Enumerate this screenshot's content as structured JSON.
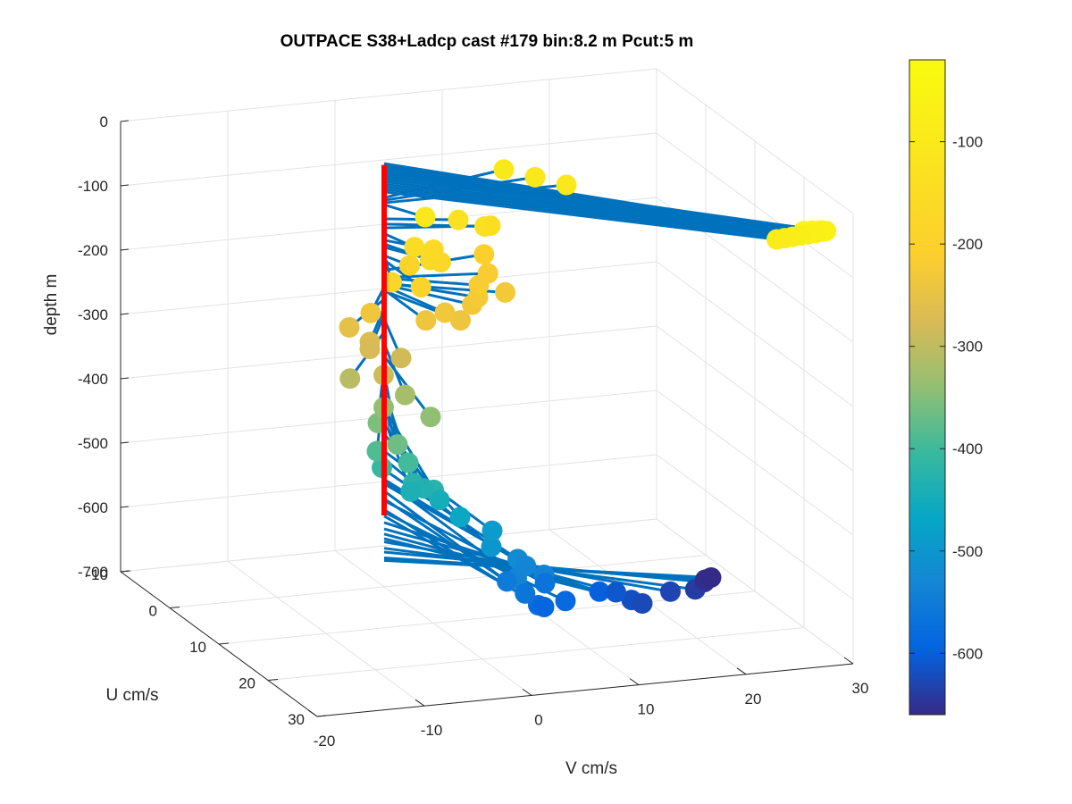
{
  "chart_data": {
    "type": "scatter",
    "title": "OUTPACE S38+Ladcp cast #179 bin:8.2 m  Pcut:5 m",
    "xlabel": "V cm/s",
    "ylabel": "U cm/s",
    "zlabel": "depth m",
    "v_ticks": [
      "-20",
      "-10",
      "0",
      "10",
      "20",
      "30"
    ],
    "u_ticks": [
      "-10",
      "0",
      "10",
      "20",
      "30"
    ],
    "depth_ticks": [
      "0",
      "-100",
      "-200",
      "-300",
      "-400",
      "-500",
      "-600",
      "-700"
    ],
    "v_range": [
      -20,
      30
    ],
    "u_range": [
      -10,
      30
    ],
    "depth_range": [
      -700,
      0
    ],
    "grid": true,
    "profile_line_color": "#ff0000",
    "vector_color": "#0072bd",
    "colorbar": {
      "colormap": "parula",
      "range": [
        -660,
        -20
      ],
      "ticks": [
        "-100",
        "-200",
        "-300",
        "-400",
        "-500",
        "-600"
      ],
      "tick_values": [
        -100,
        -200,
        -300,
        -400,
        -500,
        -600
      ]
    },
    "points_u_v_depth": [
      [
        26.5,
        27.0,
        -42
      ],
      [
        26.0,
        28.0,
        -46
      ],
      [
        25.5,
        29.0,
        -50
      ],
      [
        25.0,
        29.5,
        -54
      ],
      [
        24.5,
        30.0,
        -58
      ],
      [
        24.0,
        30.0,
        -62
      ],
      [
        23.5,
        29.5,
        -66
      ],
      [
        23.0,
        29.0,
        -70
      ],
      [
        22.5,
        28.5,
        -74
      ],
      [
        22.0,
        28.0,
        -78
      ],
      [
        21.5,
        27.5,
        -82
      ],
      [
        21.0,
        27.0,
        -86
      ],
      [
        -4.0,
        13.0,
        -95
      ],
      [
        -2.0,
        15.0,
        -99
      ],
      [
        0.0,
        17.0,
        -103
      ],
      [
        4.0,
        2.0,
        -106
      ],
      [
        2.0,
        6.0,
        -128
      ],
      [
        3.0,
        8.0,
        -136
      ],
      [
        2.0,
        9.0,
        -142
      ],
      [
        4.0,
        1.0,
        -151
      ],
      [
        3.5,
        3.0,
        -161
      ],
      [
        5.0,
        2.0,
        -167
      ],
      [
        5.0,
        3.0,
        -172
      ],
      [
        7.0,
        -2.5,
        -183
      ],
      [
        3.0,
        1.0,
        -185
      ],
      [
        7.5,
        0.0,
        -192
      ],
      [
        -1.5,
        10.0,
        -208
      ],
      [
        1.5,
        9.0,
        -219
      ],
      [
        4.0,
        7.0,
        -220
      ],
      [
        5.0,
        9.0,
        -229
      ],
      [
        6.0,
        6.0,
        -226
      ],
      [
        7.0,
        5.0,
        -230
      ],
      [
        8.0,
        2.0,
        -232
      ],
      [
        8.5,
        0.0,
        -238
      ],
      [
        6.0,
        -4.0,
        -234
      ],
      [
        9.0,
        3.0,
        -240
      ],
      [
        6.0,
        -6.0,
        -253
      ],
      [
        8.0,
        -5.0,
        -266
      ],
      [
        8.0,
        -5.0,
        -277
      ],
      [
        10.0,
        -3.0,
        -283
      ],
      [
        13.0,
        -6.0,
        -288
      ],
      [
        10.5,
        -8.0,
        -304
      ],
      [
        13.0,
        -4.0,
        -322
      ],
      [
        13.0,
        -6.0,
        -338
      ],
      [
        16.0,
        -3.0,
        -341
      ],
      [
        14.0,
        -7.0,
        -355
      ],
      [
        18.0,
        -7.0,
        -366
      ],
      [
        16.0,
        -8.0,
        -386
      ],
      [
        18.0,
        -6.0,
        -396
      ],
      [
        17.0,
        -8.0,
        -406
      ],
      [
        19.0,
        -6.0,
        -422
      ],
      [
        21.0,
        -5.0,
        -423
      ],
      [
        19.0,
        -5.0,
        -432
      ],
      [
        18.5,
        -6.0,
        -438
      ],
      [
        20.0,
        -4.0,
        -446
      ],
      [
        22.0,
        -3.0,
        -463
      ],
      [
        22.0,
        0.0,
        -489
      ],
      [
        24.0,
        -1.0,
        -501
      ],
      [
        25.0,
        1.0,
        -518
      ],
      [
        27.0,
        0.0,
        -534
      ],
      [
        24.5,
        2.0,
        -533
      ],
      [
        26.0,
        3.0,
        -540
      ],
      [
        25.0,
        0.0,
        -551
      ],
      [
        26.5,
        1.0,
        -563
      ],
      [
        24.0,
        4.0,
        -566
      ],
      [
        27.0,
        2.0,
        -580
      ],
      [
        26.0,
        5.0,
        -584
      ],
      [
        26.0,
        3.0,
        -590
      ],
      [
        22.0,
        10.0,
        -600
      ],
      [
        21.0,
        12.0,
        -610
      ],
      [
        22.0,
        13.0,
        -618
      ],
      [
        22.0,
        14.0,
        -625
      ],
      [
        19.0,
        18.0,
        -630
      ],
      [
        17.5,
        21.0,
        -640
      ],
      [
        15.0,
        23.0,
        -646
      ],
      [
        13.0,
        24.0,
        -655
      ],
      [
        12.0,
        25.0,
        -659
      ]
    ]
  }
}
